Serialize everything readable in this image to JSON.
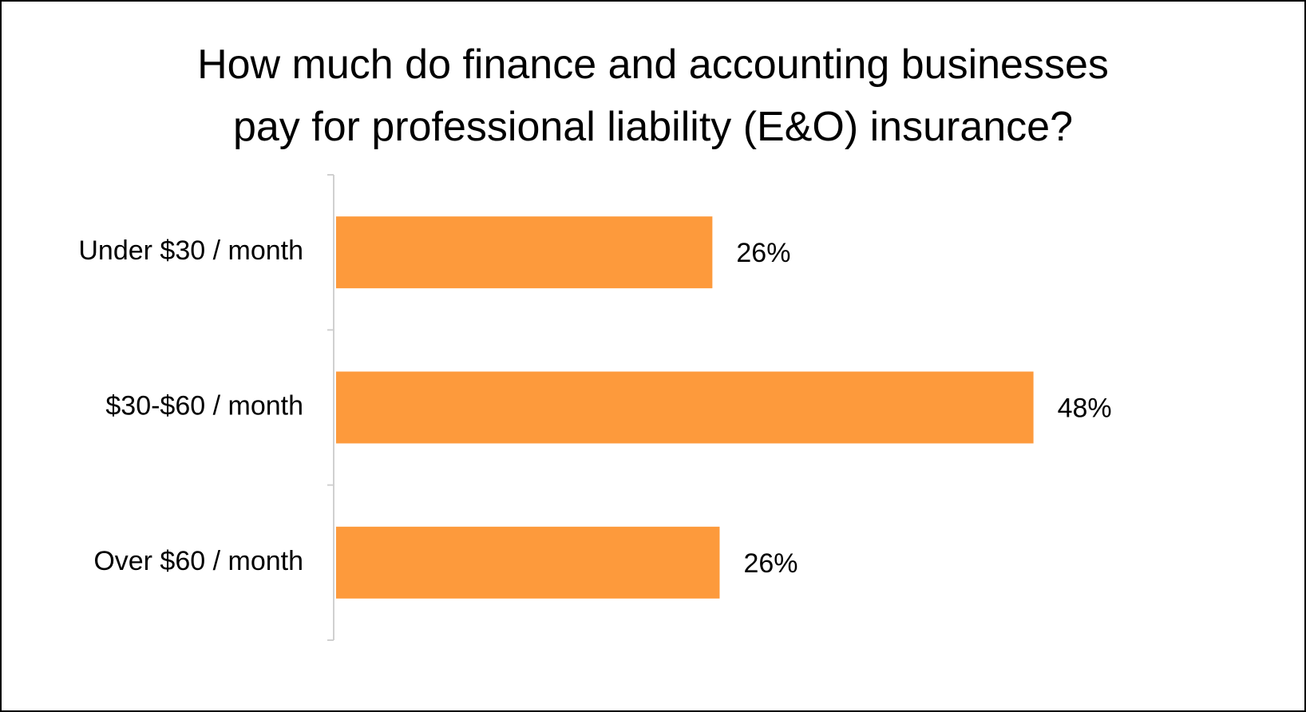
{
  "chart_data": {
    "type": "bar",
    "orientation": "horizontal",
    "title": "How much do finance and accounting businesses pay for professional liability (E&O) insurance?",
    "categories": [
      "Under $30 / month",
      "$30-$60 / month",
      "Over $60 / month"
    ],
    "values": [
      25.9,
      48,
      26.4
    ],
    "value_labels": [
      "26%",
      "48%",
      "26%"
    ],
    "color": "#fd9a3c",
    "xlim": [
      0,
      60
    ]
  }
}
